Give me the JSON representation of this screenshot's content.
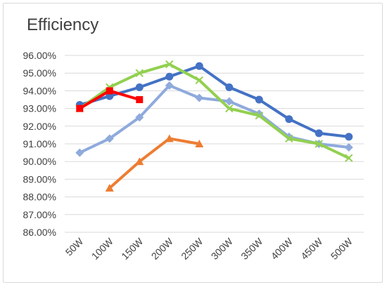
{
  "chart_data": {
    "type": "line",
    "title": "Efficiency",
    "xlabel": "",
    "ylabel": "",
    "categories": [
      "50W",
      "100W",
      "150W",
      "200W",
      "250W",
      "300W",
      "350W",
      "400W",
      "450W",
      "500W"
    ],
    "ylim": [
      86,
      96
    ],
    "yticks": [
      86,
      87,
      88,
      89,
      90,
      91,
      92,
      93,
      94,
      95,
      96
    ],
    "ytick_labels": [
      "86.00%",
      "87.00%",
      "88.00%",
      "89.00%",
      "90.00%",
      "91.00%",
      "92.00%",
      "93.00%",
      "94.00%",
      "95.00%",
      "96.00%"
    ],
    "grid": true,
    "legend": "none",
    "series": [
      {
        "color": "#4472c4",
        "marker": "circle",
        "values": [
          93.2,
          93.7,
          94.2,
          94.8,
          95.4,
          94.2,
          93.5,
          92.4,
          91.6,
          91.4
        ]
      },
      {
        "color": "#8faadc",
        "marker": "diamond",
        "values": [
          90.5,
          91.3,
          92.5,
          94.3,
          93.6,
          93.4,
          92.7,
          91.4,
          91.0,
          90.8
        ]
      },
      {
        "color": "#92d050",
        "marker": "x",
        "values": [
          93.0,
          94.2,
          95.0,
          95.5,
          94.6,
          93.0,
          92.6,
          91.3,
          91.0,
          90.2
        ]
      },
      {
        "color": "#ed7d31",
        "marker": "triangle",
        "values": [
          null,
          88.5,
          90.0,
          91.3,
          91.0,
          null,
          null,
          null,
          null,
          null
        ]
      },
      {
        "color": "#ff0000",
        "marker": "square",
        "values": [
          93.0,
          94.0,
          93.5,
          null,
          null,
          null,
          null,
          null,
          null,
          null
        ]
      }
    ]
  }
}
